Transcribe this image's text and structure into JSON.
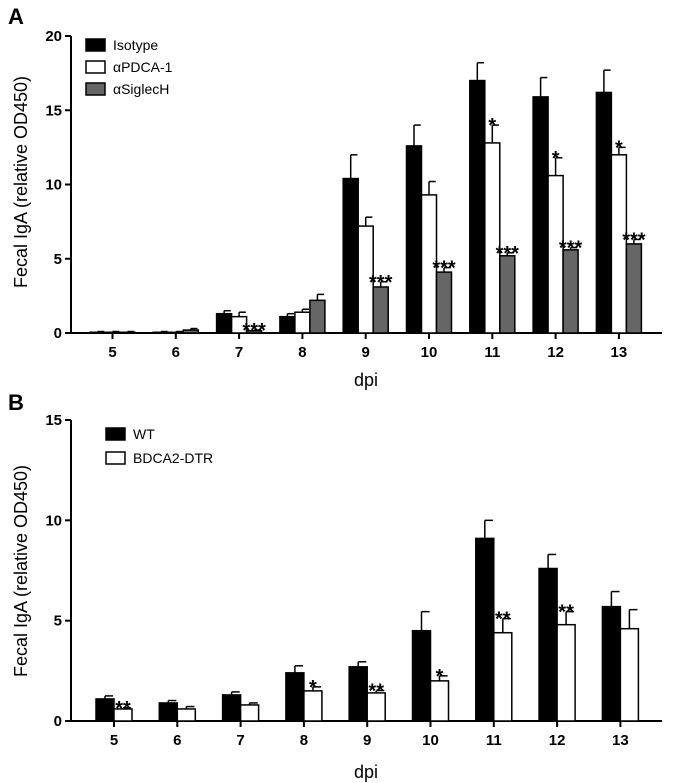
{
  "chart_data": [
    {
      "panel_label": "A",
      "type": "bar",
      "ylabel": "Fecal IgA (relative OD450)",
      "xlabel": "dpi",
      "ylim": [
        0,
        20
      ],
      "yticks": [
        "0",
        "5",
        "10",
        "15",
        "20"
      ],
      "categories": [
        "5",
        "6",
        "7",
        "8",
        "9",
        "10",
        "11",
        "12",
        "13"
      ],
      "series": [
        {
          "name": "Isotype",
          "fill": "#000000",
          "values": [
            0.05,
            0.05,
            1.3,
            1.1,
            10.4,
            12.6,
            17.0,
            15.9,
            16.2
          ],
          "errors": [
            0.05,
            0.05,
            0.2,
            0.2,
            1.6,
            1.4,
            1.2,
            1.3,
            1.5
          ]
        },
        {
          "name": "αPDCA-1",
          "fill": "#ffffff",
          "values": [
            0.05,
            0.05,
            1.1,
            1.4,
            7.2,
            9.3,
            12.8,
            10.6,
            12.0
          ],
          "errors": [
            0.05,
            0.05,
            0.3,
            0.2,
            0.6,
            0.9,
            1.2,
            1.2,
            0.5
          ]
        },
        {
          "name": "αSiglecH",
          "fill": "#666666",
          "values": [
            0.05,
            0.2,
            0.15,
            2.2,
            3.1,
            4.1,
            5.2,
            5.6,
            6.0
          ],
          "errors": [
            0.05,
            0.1,
            0.05,
            0.4,
            0.35,
            0.3,
            0.2,
            0.15,
            0.3
          ]
        }
      ],
      "annotations": [
        {
          "category": "7",
          "series": 2,
          "text": "***"
        },
        {
          "category": "9",
          "series": 2,
          "text": "***"
        },
        {
          "category": "10",
          "series": 2,
          "text": "***"
        },
        {
          "category": "11",
          "series": 1,
          "text": "*"
        },
        {
          "category": "11",
          "series": 2,
          "text": "***"
        },
        {
          "category": "12",
          "series": 1,
          "text": "*"
        },
        {
          "category": "12",
          "series": 2,
          "text": "***"
        },
        {
          "category": "13",
          "series": 1,
          "text": "*"
        },
        {
          "category": "13",
          "series": 2,
          "text": "***"
        }
      ],
      "legend_position": "top-left"
    },
    {
      "panel_label": "B",
      "type": "bar",
      "ylabel": "Fecal IgA (relative OD450)",
      "xlabel": "dpi",
      "ylim": [
        0,
        15
      ],
      "yticks": [
        "0",
        "5",
        "10",
        "15"
      ],
      "categories": [
        "5",
        "6",
        "7",
        "8",
        "9",
        "10",
        "11",
        "12",
        "13"
      ],
      "series": [
        {
          "name": "WT",
          "fill": "#000000",
          "values": [
            1.1,
            0.9,
            1.3,
            2.4,
            2.7,
            4.5,
            9.1,
            7.6,
            5.7
          ],
          "errors": [
            0.15,
            0.12,
            0.15,
            0.35,
            0.25,
            0.95,
            0.9,
            0.7,
            0.75
          ]
        },
        {
          "name": "BDCA2-DTR",
          "fill": "#ffffff",
          "values": [
            0.6,
            0.6,
            0.8,
            1.5,
            1.4,
            2.0,
            4.4,
            4.8,
            4.6
          ],
          "errors": [
            0.05,
            0.12,
            0.1,
            0.2,
            0.12,
            0.25,
            0.7,
            0.65,
            0.95
          ]
        }
      ],
      "annotations": [
        {
          "category": "5",
          "series": 1,
          "text": "**"
        },
        {
          "category": "8",
          "series": 1,
          "text": "*"
        },
        {
          "category": "9",
          "series": 1,
          "text": "**"
        },
        {
          "category": "10",
          "series": 1,
          "text": "*"
        },
        {
          "category": "11",
          "series": 1,
          "text": "**"
        },
        {
          "category": "12",
          "series": 1,
          "text": "**"
        }
      ],
      "legend_position": "top-left"
    }
  ]
}
